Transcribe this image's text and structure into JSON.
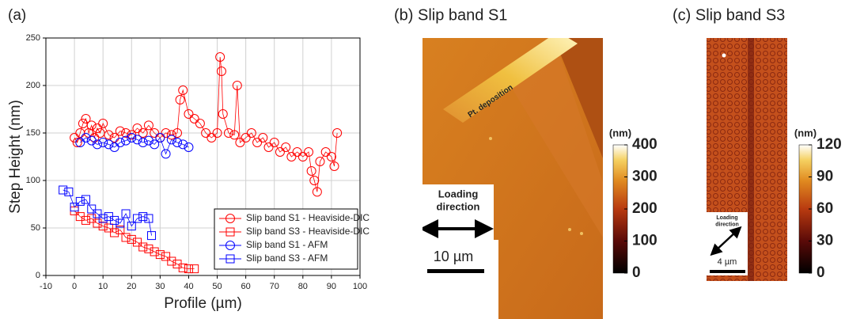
{
  "chart_data": [
    {
      "type": "scatter",
      "title": "(a)",
      "x_label": "Profile (µm)",
      "y_label": "Step Height (nm)",
      "xlim": [
        -10,
        100
      ],
      "xticks": [
        -10,
        0,
        10,
        20,
        30,
        40,
        50,
        60,
        70,
        80,
        90,
        100
      ],
      "ylim": [
        0,
        250
      ],
      "yticks": [
        0,
        50,
        100,
        150,
        200,
        250
      ],
      "grid": true,
      "legend": "lower right",
      "series": [
        {
          "name": "Slip band S1 - Heaviside-DIC",
          "color": "#ff0000",
          "marker": "circle",
          "x": [
            0,
            1,
            2,
            3,
            4,
            5,
            6,
            7,
            8,
            9,
            10,
            12,
            14,
            16,
            18,
            20,
            22,
            24,
            26,
            28,
            30,
            32,
            34,
            36,
            37,
            38,
            40,
            42,
            44,
            46,
            48,
            50,
            51,
            51.5,
            52,
            54,
            56,
            57,
            58,
            60,
            62,
            64,
            66,
            68,
            70,
            72,
            74,
            76,
            78,
            80,
            82,
            83,
            84,
            85,
            86,
            88,
            90,
            91,
            92
          ],
          "values": [
            145,
            140,
            150,
            160,
            165,
            150,
            158,
            145,
            155,
            150,
            160,
            148,
            145,
            152,
            150,
            148,
            155,
            150,
            158,
            150,
            145,
            150,
            148,
            150,
            185,
            195,
            170,
            165,
            160,
            150,
            145,
            150,
            230,
            215,
            170,
            150,
            148,
            200,
            140,
            145,
            150,
            140,
            145,
            135,
            140,
            130,
            135,
            125,
            130,
            125,
            130,
            110,
            100,
            88,
            120,
            130,
            125,
            115,
            150
          ]
        },
        {
          "name": "Slip band S3 - Heaviside-DIC",
          "color": "#ff0000",
          "marker": "square",
          "x": [
            0,
            2,
            4,
            6,
            8,
            10,
            12,
            14,
            16,
            18,
            20,
            22,
            24,
            26,
            28,
            30,
            32,
            34,
            36,
            38,
            40,
            42
          ],
          "values": [
            68,
            62,
            58,
            60,
            55,
            52,
            50,
            45,
            48,
            40,
            38,
            35,
            30,
            28,
            25,
            22,
            20,
            15,
            12,
            8,
            7,
            7
          ]
        },
        {
          "name": "Slip band S1 - AFM",
          "color": "#0000ff",
          "marker": "circle",
          "x": [
            2,
            4,
            6,
            8,
            10,
            12,
            14,
            16,
            18,
            20,
            22,
            24,
            26,
            28,
            30,
            32,
            34,
            36,
            38,
            40
          ],
          "values": [
            140,
            145,
            142,
            138,
            140,
            138,
            135,
            140,
            142,
            145,
            143,
            140,
            142,
            138,
            145,
            128,
            143,
            140,
            138,
            135
          ]
        },
        {
          "name": "Slip band S3 - AFM",
          "color": "#0000ff",
          "marker": "square",
          "x": [
            -4,
            -2,
            0,
            2,
            4,
            6,
            8,
            10,
            12,
            14,
            16,
            18,
            20,
            22,
            24,
            26,
            27
          ],
          "values": [
            90,
            88,
            72,
            78,
            80,
            70,
            65,
            60,
            62,
            58,
            55,
            65,
            52,
            60,
            62,
            60,
            42
          ]
        }
      ]
    },
    {
      "type": "image",
      "title": "(b) Slip band S1",
      "pt_label": "Pt. deposition",
      "loading_direction": [
        "Loading",
        "direction"
      ],
      "scale_bar": "10 µm",
      "colorbar": {
        "label": "(nm)",
        "lim": [
          0,
          400
        ],
        "ticks": [
          0,
          100,
          200,
          300,
          400
        ]
      }
    },
    {
      "type": "image",
      "title": "(c) Slip band S3",
      "loading_direction": [
        "Loading",
        "direction"
      ],
      "scale_bar": "4 µm",
      "colorbar": {
        "label": "(nm)",
        "lim": [
          0,
          120
        ],
        "ticks": [
          0,
          30,
          60,
          90,
          120
        ]
      }
    }
  ]
}
